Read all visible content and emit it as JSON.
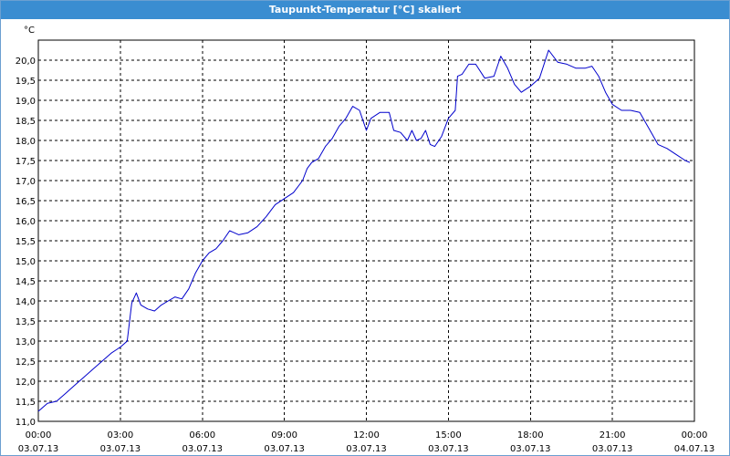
{
  "window": {
    "title": "Taupunkt-Temperatur [°C] skaliert"
  },
  "colors": {
    "line": "#0000cc",
    "grid": "#000000",
    "titlebar": "#3a8dd1"
  },
  "chart_data": {
    "type": "line",
    "title": "Taupunkt-Temperatur [°C] skaliert",
    "unit_label": "°C",
    "grid": true,
    "ylim": [
      11.0,
      20.5
    ],
    "yticks": [
      "11,0",
      "11,5",
      "12,0",
      "12,5",
      "13,0",
      "13,5",
      "14,0",
      "14,5",
      "15,0",
      "15,5",
      "16,0",
      "16,5",
      "17,0",
      "17,5",
      "18,0",
      "18,5",
      "19,0",
      "19,5",
      "20,0"
    ],
    "xticks": [
      {
        "time": "00:00",
        "date": "03.07.13"
      },
      {
        "time": "03:00",
        "date": "03.07.13"
      },
      {
        "time": "06:00",
        "date": "03.07.13"
      },
      {
        "time": "09:00",
        "date": "03.07.13"
      },
      {
        "time": "12:00",
        "date": "03.07.13"
      },
      {
        "time": "15:00",
        "date": "03.07.13"
      },
      {
        "time": "18:00",
        "date": "03.07.13"
      },
      {
        "time": "21:00",
        "date": "03.07.13"
      },
      {
        "time": "00:00",
        "date": "04.07.13"
      }
    ],
    "series": [
      {
        "points": [
          [
            "03.07.13 00:00",
            11.25
          ],
          [
            "03.07.13 00:20",
            11.45
          ],
          [
            "03.07.13 00:40",
            11.5
          ],
          [
            "03.07.13 01:00",
            11.7
          ],
          [
            "03.07.13 01:20",
            11.9
          ],
          [
            "03.07.13 01:40",
            12.1
          ],
          [
            "03.07.13 02:00",
            12.3
          ],
          [
            "03.07.13 02:20",
            12.5
          ],
          [
            "03.07.13 02:40",
            12.7
          ],
          [
            "03.07.13 03:00",
            12.85
          ],
          [
            "03.07.13 03:15",
            13.0
          ],
          [
            "03.07.13 03:25",
            13.95
          ],
          [
            "03.07.13 03:35",
            14.2
          ],
          [
            "03.07.13 03:45",
            13.9
          ],
          [
            "03.07.13 04:00",
            13.8
          ],
          [
            "03.07.13 04:15",
            13.75
          ],
          [
            "03.07.13 04:30",
            13.9
          ],
          [
            "03.07.13 04:45",
            14.0
          ],
          [
            "03.07.13 05:00",
            14.1
          ],
          [
            "03.07.13 05:15",
            14.05
          ],
          [
            "03.07.13 05:30",
            14.3
          ],
          [
            "03.07.13 05:45",
            14.7
          ],
          [
            "03.07.13 06:00",
            15.0
          ],
          [
            "03.07.13 06:15",
            15.2
          ],
          [
            "03.07.13 06:30",
            15.3
          ],
          [
            "03.07.13 06:45",
            15.5
          ],
          [
            "03.07.13 07:00",
            15.75
          ],
          [
            "03.07.13 07:20",
            15.65
          ],
          [
            "03.07.13 07:40",
            15.7
          ],
          [
            "03.07.13 08:00",
            15.85
          ],
          [
            "03.07.13 08:20",
            16.1
          ],
          [
            "03.07.13 08:40",
            16.4
          ],
          [
            "03.07.13 09:00",
            16.55
          ],
          [
            "03.07.13 09:20",
            16.7
          ],
          [
            "03.07.13 09:40",
            17.0
          ],
          [
            "03.07.13 09:50",
            17.3
          ],
          [
            "03.07.13 10:00",
            17.45
          ],
          [
            "03.07.13 10:15",
            17.55
          ],
          [
            "03.07.13 10:30",
            17.85
          ],
          [
            "03.07.13 10:45",
            18.05
          ],
          [
            "03.07.13 11:00",
            18.35
          ],
          [
            "03.07.13 11:15",
            18.55
          ],
          [
            "03.07.13 11:30",
            18.85
          ],
          [
            "03.07.13 11:45",
            18.75
          ],
          [
            "03.07.13 12:00",
            18.25
          ],
          [
            "03.07.13 12:10",
            18.55
          ],
          [
            "03.07.13 12:30",
            18.7
          ],
          [
            "03.07.13 12:50",
            18.7
          ],
          [
            "03.07.13 13:00",
            18.25
          ],
          [
            "03.07.13 13:15",
            18.2
          ],
          [
            "03.07.13 13:30",
            18.0
          ],
          [
            "03.07.13 13:40",
            18.25
          ],
          [
            "03.07.13 13:50",
            18.0
          ],
          [
            "03.07.13 14:00",
            18.05
          ],
          [
            "03.07.13 14:10",
            18.25
          ],
          [
            "03.07.13 14:20",
            17.9
          ],
          [
            "03.07.13 14:30",
            17.85
          ],
          [
            "03.07.13 14:45",
            18.1
          ],
          [
            "03.07.13 15:00",
            18.55
          ],
          [
            "03.07.13 15:15",
            18.75
          ],
          [
            "03.07.13 15:20",
            19.6
          ],
          [
            "03.07.13 15:30",
            19.65
          ],
          [
            "03.07.13 15:45",
            19.9
          ],
          [
            "03.07.13 16:00",
            19.9
          ],
          [
            "03.07.13 16:20",
            19.55
          ],
          [
            "03.07.13 16:40",
            19.6
          ],
          [
            "03.07.13 16:55",
            20.1
          ],
          [
            "03.07.13 17:10",
            19.8
          ],
          [
            "03.07.13 17:25",
            19.4
          ],
          [
            "03.07.13 17:40",
            19.2
          ],
          [
            "03.07.13 18:00",
            19.35
          ],
          [
            "03.07.13 18:20",
            19.55
          ],
          [
            "03.07.13 18:40",
            20.25
          ],
          [
            "03.07.13 19:00",
            19.95
          ],
          [
            "03.07.13 19:20",
            19.9
          ],
          [
            "03.07.13 19:40",
            19.8
          ],
          [
            "03.07.13 20:00",
            19.8
          ],
          [
            "03.07.13 20:15",
            19.85
          ],
          [
            "03.07.13 20:30",
            19.6
          ],
          [
            "03.07.13 20:45",
            19.2
          ],
          [
            "03.07.13 21:00",
            18.9
          ],
          [
            "03.07.13 21:20",
            18.75
          ],
          [
            "03.07.13 21:40",
            18.75
          ],
          [
            "03.07.13 22:00",
            18.7
          ],
          [
            "03.07.13 22:20",
            18.3
          ],
          [
            "03.07.13 22:40",
            17.9
          ],
          [
            "03.07.13 23:00",
            17.8
          ],
          [
            "03.07.13 23:20",
            17.65
          ],
          [
            "03.07.13 23:40",
            17.5
          ],
          [
            "03.07.13 23:50",
            17.45
          ]
        ]
      }
    ]
  }
}
